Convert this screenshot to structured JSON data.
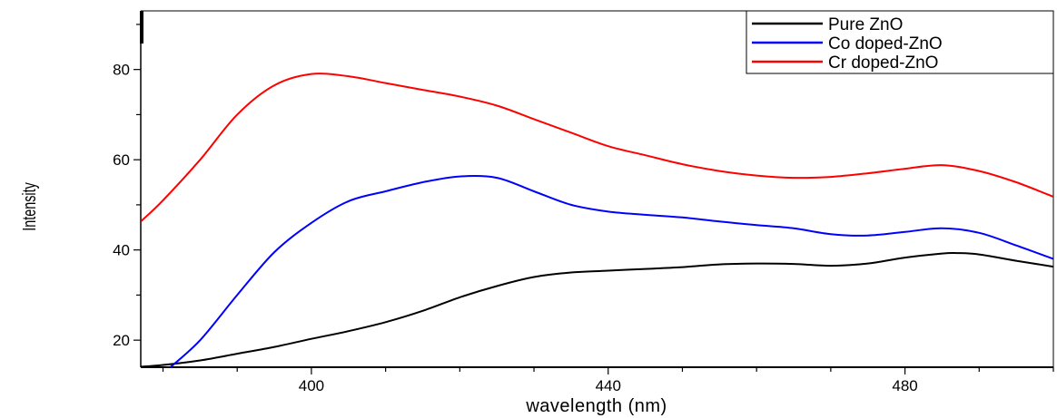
{
  "chart_data": {
    "type": "line",
    "title": "",
    "xlabel": "wavelength (nm)",
    "ylabel": "Intensity",
    "xlim": [
      377,
      500
    ],
    "ylim": [
      14,
      93
    ],
    "x_ticks": [
      400,
      440,
      480
    ],
    "y_ticks": [
      20,
      40,
      60,
      80
    ],
    "grid": false,
    "legend_position": "top-right",
    "series": [
      {
        "name": "Pure ZnO",
        "color": "#000000",
        "x": [
          377,
          380,
          385,
          390,
          395,
          400,
          405,
          410,
          415,
          420,
          425,
          430,
          435,
          440,
          445,
          450,
          455,
          460,
          465,
          470,
          475,
          480,
          485,
          487,
          490,
          495,
          500
        ],
        "y": [
          14.1,
          14.5,
          15.5,
          17,
          18.5,
          20.3,
          22,
          24,
          26.5,
          29.5,
          32,
          34,
          35,
          35.4,
          35.8,
          36.2,
          36.8,
          37,
          36.9,
          36.5,
          37,
          38.3,
          39.2,
          39.3,
          39,
          37.6,
          36.3
        ]
      },
      {
        "name": "Co doped-ZnO",
        "color": "#0000ff",
        "x": [
          381,
          385,
          390,
          395,
          400,
          405,
          410,
          415,
          420,
          425,
          430,
          435,
          440,
          445,
          450,
          455,
          460,
          465,
          470,
          475,
          480,
          485,
          490,
          495,
          500
        ],
        "y": [
          14,
          20,
          30,
          39.5,
          46,
          50.8,
          53,
          55,
          56.3,
          56,
          53,
          50,
          48.5,
          47.8,
          47.2,
          46.3,
          45.5,
          44.8,
          43.5,
          43.2,
          44,
          44.8,
          43.8,
          41,
          38
        ]
      },
      {
        "name": "Cr doped-ZnO",
        "color": "#ff0000",
        "x": [
          377,
          380,
          385,
          390,
          395,
          400,
          405,
          410,
          415,
          420,
          425,
          430,
          435,
          440,
          445,
          450,
          455,
          460,
          465,
          470,
          475,
          480,
          485,
          490,
          495,
          500
        ],
        "y": [
          46.3,
          51,
          60,
          70,
          76.5,
          79,
          78.5,
          77,
          75.5,
          74,
          72,
          69,
          66,
          63,
          61,
          59,
          57.5,
          56.5,
          56,
          56.2,
          57,
          58,
          58.8,
          57.5,
          55,
          51.8
        ]
      }
    ]
  }
}
